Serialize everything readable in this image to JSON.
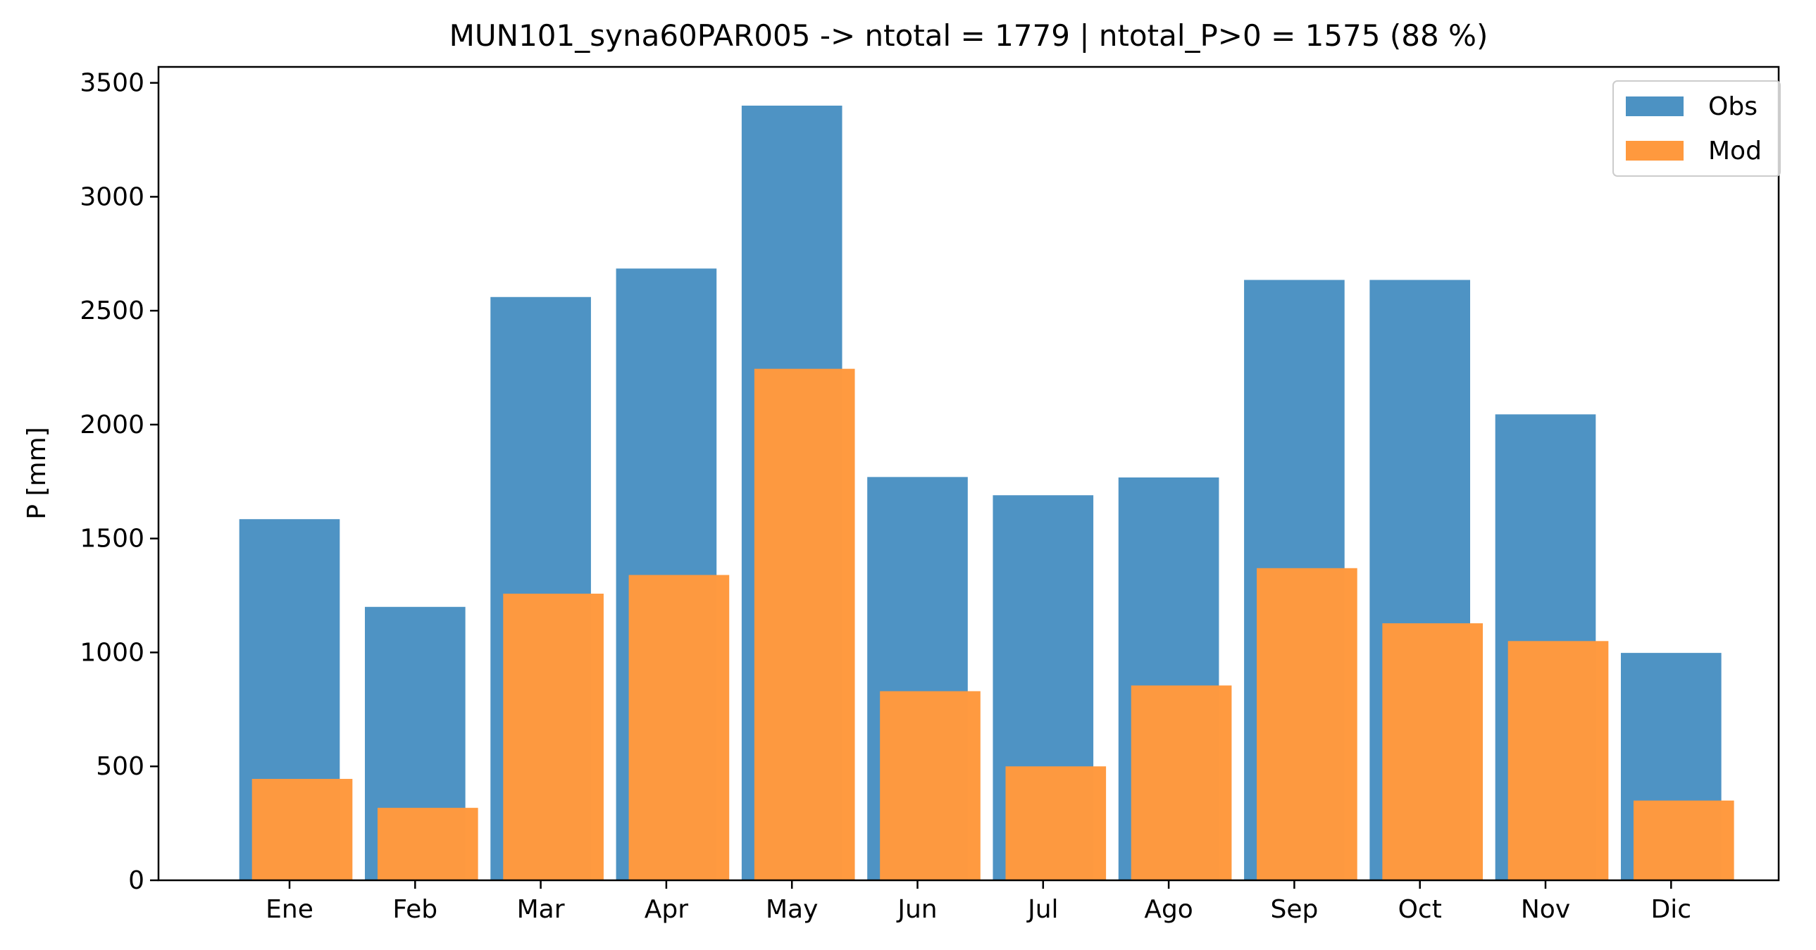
{
  "chart_data": {
    "type": "bar",
    "title": "MUN101_syna60PAR005 -> ntotal = 1779 | ntotal_P>0 = 1575 (88 %)",
    "xlabel": "",
    "ylabel": "P [mm]",
    "ylim": [
      0,
      3570
    ],
    "yticks": [
      0,
      500,
      1000,
      1500,
      2000,
      2500,
      3000,
      3500
    ],
    "grid": false,
    "legend_position": "top-right",
    "categories": [
      "Ene",
      "Feb",
      "Mar",
      "Apr",
      "May",
      "Jun",
      "Jul",
      "Ago",
      "Sep",
      "Oct",
      "Nov",
      "Dic"
    ],
    "series": [
      {
        "name": "Obs",
        "color": "#4c92c3",
        "values": [
          1585,
          1200,
          2560,
          2685,
          3400,
          1770,
          1690,
          1768,
          2635,
          2635,
          2045,
          998
        ]
      },
      {
        "name": "Mod",
        "color": "#ff993e",
        "values": [
          445,
          318,
          1258,
          1340,
          2245,
          830,
          500,
          855,
          1370,
          1128,
          1050,
          350
        ]
      }
    ]
  }
}
